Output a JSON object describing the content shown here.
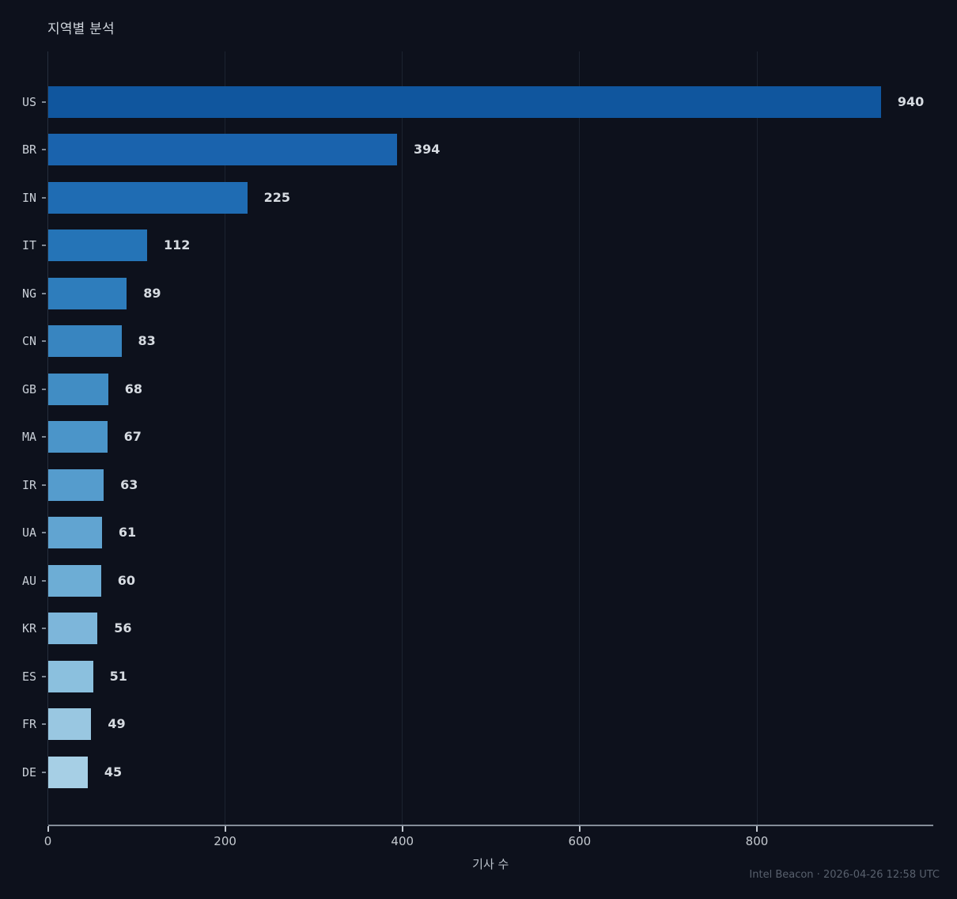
{
  "title": "지역별 분석",
  "footer": "Intel Beacon · 2026-04-26 12:58 UTC",
  "colors": {
    "background": "#0d111c",
    "grid": "#1c2330",
    "left_spine": "#272f3d",
    "axis_line": "#848d99",
    "xtick_mark": "#c2c8d0",
    "ytick_mark": "#7f8894",
    "title_text": "#ced4db",
    "category_text": "#c8ced6",
    "value_text": "#d6dbe1",
    "xtick_text": "#c5cad0",
    "xlabel_text": "#bac1ca",
    "footer_text": "#58606d"
  },
  "chart_data": {
    "type": "bar",
    "orientation": "horizontal",
    "title": "지역별 분석",
    "xlabel": "기사 수",
    "ylabel": "",
    "categories": [
      "US",
      "BR",
      "IN",
      "IT",
      "NG",
      "CN",
      "GB",
      "MA",
      "IR",
      "UA",
      "AU",
      "KR",
      "ES",
      "FR",
      "DE"
    ],
    "values": [
      940,
      394,
      225,
      112,
      89,
      83,
      68,
      67,
      63,
      61,
      60,
      56,
      51,
      49,
      45
    ],
    "bar_colors": [
      "#10569e",
      "#1a63ad",
      "#1f6cb3",
      "#2574b7",
      "#2e7dbc",
      "#3885c0",
      "#418dc4",
      "#4b95c9",
      "#559ccd",
      "#61a4d1",
      "#6dadd5",
      "#7db6da",
      "#8bc0de",
      "#99c7e1",
      "#a6cfe5"
    ],
    "xticks": [
      0,
      200,
      400,
      600,
      800
    ],
    "xlim": [
      0,
      1000
    ],
    "grid": true,
    "legend": false,
    "value_labels": true,
    "source_note": "Intel Beacon · 2026-04-26 12:58 UTC"
  }
}
